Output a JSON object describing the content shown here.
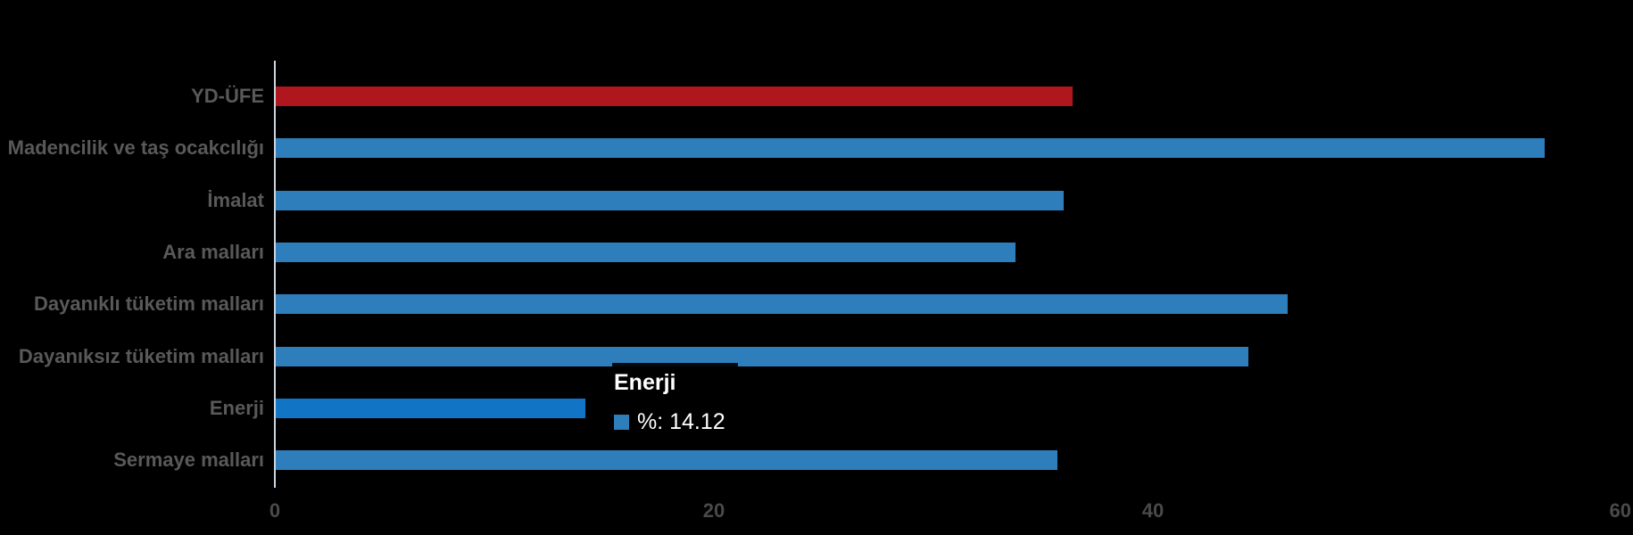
{
  "chart_data": {
    "type": "bar",
    "orientation": "horizontal",
    "title": "",
    "xlabel": "",
    "ylabel": "",
    "categories": [
      "YD-ÜFE",
      "Madencilik ve taş ocakcılığı",
      "İmalat",
      "Ara malları",
      "Dayanıklı tüketim malları",
      "Dayanıksız tüketim malları",
      "Enerji",
      "Sermaye malları"
    ],
    "values": [
      36.3,
      57.8,
      35.9,
      33.7,
      46.1,
      44.3,
      14.12,
      35.6
    ],
    "bar_colors": [
      "#b0161d",
      "#2f7ebc",
      "#2f7ebc",
      "#2f7ebc",
      "#2f7ebc",
      "#2f7ebc",
      "#1274c5",
      "#2f7ebc"
    ],
    "highlighted_index": 6,
    "xlim": [
      0,
      60
    ],
    "x_ticks": [
      0,
      20,
      40,
      60
    ],
    "x_tick_labels": [
      "0",
      "20",
      "40",
      "60"
    ],
    "grid": false,
    "legend_position": "none"
  },
  "tooltip": {
    "title": "Enerji",
    "value_label": "%: 14.12",
    "swatch_color": "#2f7ebc"
  },
  "colors": {
    "background": "#000000",
    "axis_line": "#ccd5de",
    "category_label": "#595959",
    "tick_label": "#4a4a4a",
    "bar_default": "#2f7ebc",
    "bar_highlight": "#1274c5",
    "bar_special": "#b0161d",
    "tooltip_text": "#ffffff"
  }
}
